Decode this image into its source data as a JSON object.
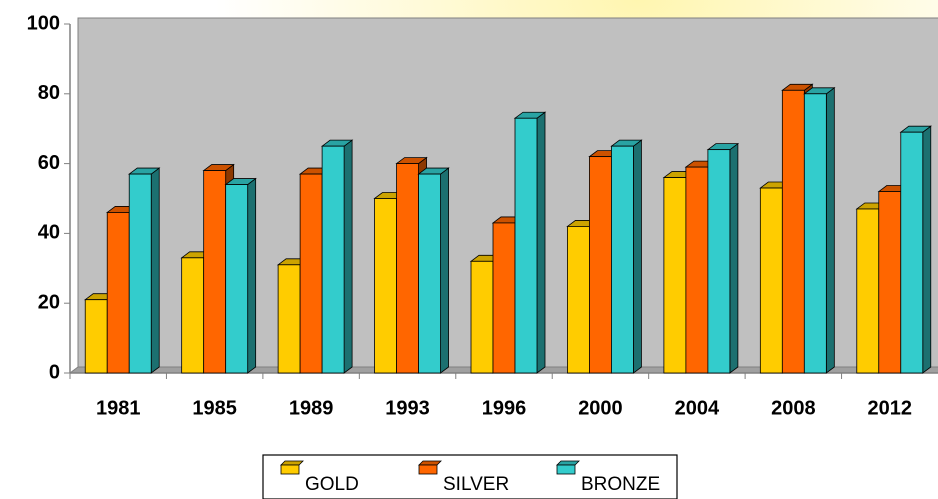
{
  "chart_data": {
    "type": "bar3d",
    "categories": [
      "1981",
      "1985",
      "1989",
      "1993",
      "1996",
      "2000",
      "2004",
      "2008",
      "2012"
    ],
    "series": [
      {
        "name": "GOLD",
        "color": "#ffcc00",
        "values": [
          21,
          33,
          31,
          50,
          32,
          42,
          56,
          53,
          47
        ]
      },
      {
        "name": "SILVER",
        "color": "#ff6600",
        "values": [
          46,
          58,
          57,
          60,
          43,
          62,
          59,
          81,
          52
        ]
      },
      {
        "name": "BRONZE",
        "color": "#33cccc",
        "values": [
          57,
          54,
          65,
          57,
          73,
          65,
          64,
          80,
          69
        ]
      }
    ],
    "ylim": [
      0,
      100
    ],
    "yticks": [
      0,
      20,
      40,
      60,
      80,
      100
    ],
    "grid": false,
    "legend": "bottom"
  }
}
